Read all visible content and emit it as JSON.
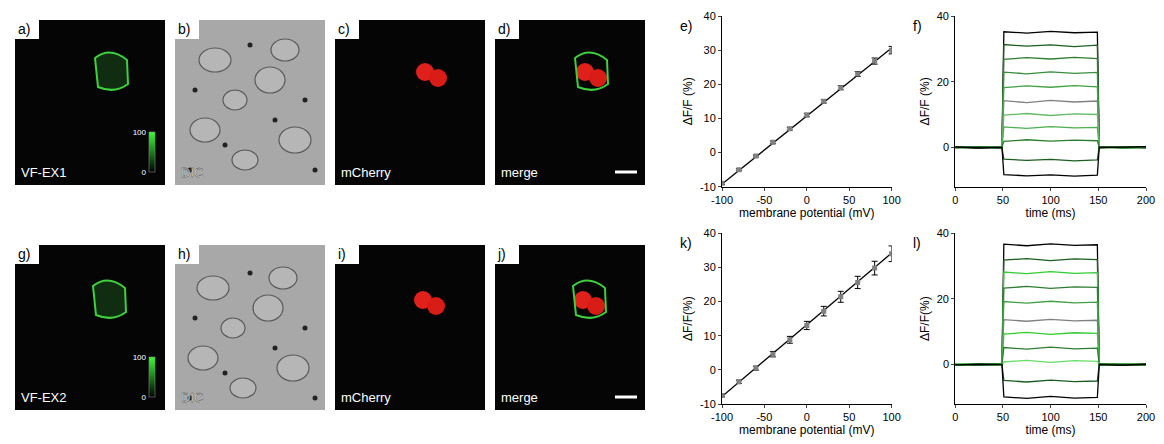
{
  "image_rows": [
    [
      {
        "panel": "a)",
        "label": "VF-EX1",
        "type": "fluorescence",
        "colorbar": {
          "range": [
            0,
            100
          ],
          "ticks": [
            0,
            100
          ]
        }
      },
      {
        "panel": "b)",
        "label": "DIC",
        "type": "DIC"
      },
      {
        "panel": "c)",
        "label": "mCherry",
        "type": "mCherry"
      },
      {
        "panel": "d)",
        "label": "merge",
        "type": "merge",
        "scale_bar": true
      }
    ],
    [
      {
        "panel": "g)",
        "label": "VF-EX2",
        "type": "fluorescence",
        "colorbar": {
          "range": [
            0,
            100
          ],
          "ticks": [
            0,
            100
          ]
        }
      },
      {
        "panel": "h)",
        "label": "DIC",
        "type": "DIC"
      },
      {
        "panel": "i)",
        "label": "mCherry",
        "type": "mCherry"
      },
      {
        "panel": "j)",
        "label": "merge",
        "type": "merge",
        "scale_bar": true
      }
    ]
  ],
  "chart_data": [
    {
      "panel": "e)",
      "type": "scatter",
      "grid": false,
      "x_label": "membrane potential (mV)",
      "y_label": "ΔF/F (%)",
      "xlim": [
        -100,
        100
      ],
      "xticks": [
        -100,
        -50,
        0,
        50,
        100
      ],
      "ylim": [
        -10,
        40
      ],
      "yticks": [
        -10,
        0,
        10,
        20,
        30,
        40
      ],
      "series": [
        {
          "type": "line",
          "color": "#000000",
          "line_style": "solid",
          "x": [
            -100,
            100
          ],
          "values": [
            -9.2,
            30.6
          ]
        },
        {
          "type": "scatter",
          "color": "#808080",
          "marker": "square",
          "x": [
            -100,
            -80,
            -60,
            -40,
            -20,
            0,
            20,
            40,
            60,
            80,
            100
          ],
          "values": [
            -9.0,
            -5.0,
            -1.0,
            3.0,
            7.0,
            11.0,
            15.0,
            19.0,
            23.0,
            26.8,
            30.0
          ],
          "error": [
            0.3,
            0.3,
            0.3,
            0.4,
            0.4,
            0.5,
            0.5,
            0.6,
            0.7,
            0.9,
            1.1
          ]
        }
      ]
    },
    {
      "panel": "f)",
      "type": "line",
      "grid": false,
      "x_label": "time (ms)",
      "y_label": "ΔF/F (%)",
      "xlim": [
        0,
        200
      ],
      "xticks": [
        0,
        50,
        100,
        150,
        200
      ],
      "ylim": [
        -12,
        40
      ],
      "yticks": [
        0,
        20,
        40
      ],
      "x": [
        0,
        25,
        49,
        51,
        75,
        100,
        125,
        149,
        151,
        175,
        200
      ],
      "series": [
        {
          "color": "#000000",
          "values": [
            0.1,
            -0.2,
            0.2,
            35.2,
            34.8,
            35.3,
            34.9,
            35.1,
            -0.1,
            0.2,
            -0.1
          ]
        },
        {
          "color": "#1b5e20",
          "values": [
            -0.1,
            0.2,
            0.0,
            31.3,
            30.8,
            31.2,
            30.7,
            31.1,
            0.2,
            -0.2,
            0.1
          ]
        },
        {
          "color": "#2e7d32",
          "values": [
            0.2,
            0.0,
            -0.2,
            26.8,
            27.3,
            26.9,
            27.4,
            27.0,
            0.0,
            0.1,
            -0.2
          ]
        },
        {
          "color": "#388e3c",
          "values": [
            0.0,
            -0.1,
            0.2,
            22.9,
            22.4,
            23.0,
            22.5,
            22.8,
            -0.2,
            0.0,
            0.2
          ]
        },
        {
          "color": "#43a047",
          "values": [
            -0.2,
            0.1,
            0.1,
            18.2,
            18.7,
            18.3,
            18.8,
            18.4,
            0.1,
            -0.1,
            0.0
          ]
        },
        {
          "color": "#808080",
          "values": [
            0.1,
            0.0,
            -0.1,
            14.2,
            13.6,
            14.3,
            13.8,
            14.1,
            0.0,
            0.2,
            -0.1
          ]
        },
        {
          "color": "#66bb6a",
          "values": [
            0.0,
            0.2,
            -0.1,
            9.8,
            10.3,
            9.7,
            10.2,
            10.0,
            -0.1,
            0.0,
            0.1
          ]
        },
        {
          "color": "#4caf50",
          "values": [
            0.2,
            -0.1,
            0.0,
            6.2,
            5.8,
            6.3,
            5.9,
            6.1,
            0.1,
            -0.2,
            0.0
          ]
        },
        {
          "color": "#2e7d32",
          "values": [
            -0.1,
            0.0,
            0.2,
            1.8,
            2.3,
            1.9,
            2.2,
            2.0,
            0.0,
            0.1,
            -0.1
          ]
        },
        {
          "color": "#1b5e20",
          "values": [
            0.0,
            0.1,
            -0.2,
            -3.6,
            -4.0,
            -3.7,
            -4.1,
            -3.8,
            0.2,
            -0.1,
            0.0
          ]
        },
        {
          "color": "#000000",
          "values": [
            0.1,
            -0.2,
            0.0,
            -8.3,
            -8.7,
            -8.4,
            -8.8,
            -8.5,
            -0.1,
            0.0,
            0.2
          ]
        }
      ]
    },
    {
      "panel": "k)",
      "type": "scatter",
      "grid": false,
      "x_label": "membrane potential (mV)",
      "y_label": "ΔF/F(%)",
      "xlim": [
        -100,
        100
      ],
      "xticks": [
        -100,
        -50,
        0,
        50,
        100
      ],
      "ylim": [
        -10,
        40
      ],
      "yticks": [
        -10,
        0,
        10,
        20,
        30,
        40
      ],
      "series": [
        {
          "type": "line",
          "color": "#000000",
          "line_style": "solid",
          "x": [
            -100,
            100
          ],
          "values": [
            -7.8,
            34.2
          ]
        },
        {
          "type": "scatter",
          "color": "#808080",
          "marker": "square",
          "x": [
            -100,
            -80,
            -60,
            -40,
            -20,
            0,
            20,
            40,
            60,
            80,
            100
          ],
          "values": [
            -7.5,
            -3.5,
            0.5,
            4.6,
            8.8,
            13.0,
            17.2,
            21.4,
            25.6,
            29.8,
            34.0
          ],
          "error": [
            0.4,
            0.5,
            0.6,
            0.8,
            1.0,
            1.2,
            1.4,
            1.6,
            1.8,
            2.0,
            2.3
          ]
        }
      ]
    },
    {
      "panel": "l)",
      "type": "line",
      "grid": false,
      "x_label": "time (ms)",
      "y_label": "ΔF/F(%)",
      "xlim": [
        0,
        200
      ],
      "xticks": [
        0,
        50,
        100,
        150,
        200
      ],
      "ylim": [
        -12,
        40
      ],
      "yticks": [
        0,
        20,
        40
      ],
      "x": [
        0,
        25,
        49,
        51,
        75,
        100,
        125,
        149,
        151,
        175,
        200
      ],
      "series": [
        {
          "color": "#000000",
          "values": [
            0.2,
            -0.1,
            0.0,
            36.7,
            36.2,
            36.8,
            36.3,
            36.5,
            0.1,
            -0.2,
            0.0
          ]
        },
        {
          "color": "#1b5e20",
          "values": [
            -0.1,
            0.1,
            0.2,
            31.8,
            32.3,
            31.7,
            32.2,
            32.0,
            -0.1,
            0.2,
            0.1
          ]
        },
        {
          "color": "#33cc33",
          "values": [
            0.0,
            0.2,
            -0.1,
            28.2,
            27.7,
            28.3,
            27.8,
            28.0,
            0.2,
            0.0,
            -0.2
          ]
        },
        {
          "color": "#2e7d32",
          "values": [
            0.1,
            -0.2,
            0.1,
            23.3,
            23.8,
            23.2,
            23.7,
            23.5,
            0.0,
            0.1,
            0.0
          ]
        },
        {
          "color": "#43a047",
          "values": [
            -0.2,
            0.0,
            0.2,
            19.2,
            18.7,
            19.3,
            18.8,
            19.0,
            -0.2,
            0.1,
            0.1
          ]
        },
        {
          "color": "#808080",
          "values": [
            0.0,
            0.1,
            -0.1,
            13.7,
            13.2,
            13.8,
            13.3,
            13.5,
            0.1,
            -0.1,
            0.0
          ]
        },
        {
          "color": "#33cc33",
          "values": [
            0.1,
            0.0,
            0.1,
            9.3,
            9.8,
            9.2,
            9.7,
            9.5,
            0.0,
            0.2,
            -0.1
          ]
        },
        {
          "color": "#2e7d32",
          "values": [
            -0.1,
            0.2,
            0.0,
            5.2,
            4.7,
            5.3,
            4.8,
            5.0,
            0.1,
            0.0,
            0.2
          ]
        },
        {
          "color": "#66dd66",
          "values": [
            0.2,
            0.0,
            -0.2,
            0.8,
            1.3,
            0.7,
            1.2,
            1.0,
            -0.1,
            0.1,
            0.0
          ]
        },
        {
          "color": "#1b5e20",
          "values": [
            0.0,
            -0.1,
            0.1,
            -4.8,
            -5.3,
            -4.7,
            -5.2,
            -5.0,
            0.2,
            0.0,
            -0.1
          ]
        },
        {
          "color": "#000000",
          "values": [
            -0.1,
            0.1,
            0.0,
            -9.8,
            -10.3,
            -9.7,
            -10.2,
            -10.0,
            0.0,
            -0.2,
            0.1
          ]
        }
      ]
    }
  ]
}
